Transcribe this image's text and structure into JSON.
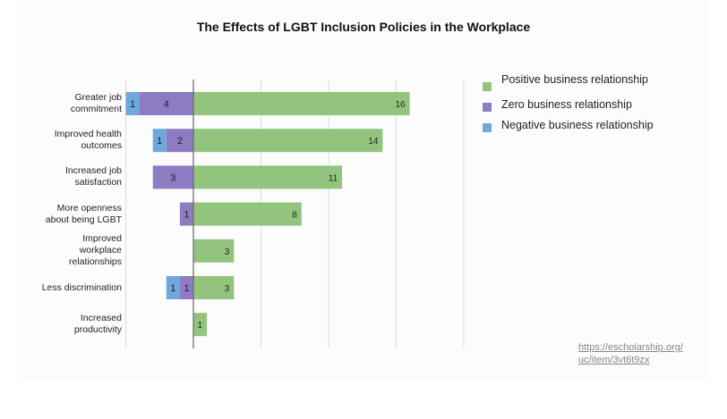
{
  "chart_data": {
    "type": "bar",
    "orientation": "horizontal",
    "stacked": true,
    "title": "The Effects of LGBT Inclusion Policies in the Workplace",
    "xlabel": "",
    "ylabel": "",
    "xlim": [
      -5,
      20
    ],
    "x_gridlines": [
      -5,
      0,
      5,
      10,
      15,
      20
    ],
    "grid": true,
    "legend_position": "right",
    "categories": [
      "Greater job commitment",
      "Improved health outcomes",
      "Increased job satisfaction",
      "More openness about being LGBT",
      "Improved workplace relationships",
      "Less discrimination",
      "Increased productivity"
    ],
    "category_label_lines": [
      [
        "Greater job",
        "commitment"
      ],
      [
        "Improved health",
        "outcomes"
      ],
      [
        "Increased job",
        "satisfaction"
      ],
      [
        "More openness",
        "about being LGBT"
      ],
      [
        "Improved",
        "workplace",
        "relationships"
      ],
      [
        "Less discrimination"
      ],
      [
        "Increased",
        "productivity"
      ]
    ],
    "series": [
      {
        "name": "Positive business relationship",
        "color": "#93c47d",
        "direction": "right",
        "values": [
          16,
          14,
          11,
          8,
          3,
          3,
          1
        ]
      },
      {
        "name": "Zero business relationship",
        "color": "#8e7cc3",
        "direction": "left",
        "values": [
          4,
          2,
          3,
          1,
          0,
          1,
          0
        ]
      },
      {
        "name": "Negative business relationship",
        "color": "#6fa8dc",
        "direction": "left",
        "values": [
          1,
          1,
          0,
          0,
          0,
          1,
          0
        ]
      }
    ]
  },
  "source": {
    "line1": "https://escholarship.org/",
    "line2": "uc/item/3vt6t9zx"
  }
}
